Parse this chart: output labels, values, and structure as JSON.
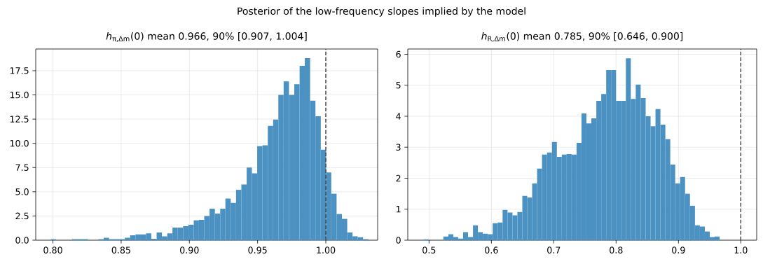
{
  "chart_data": [
    {
      "type": "histogram",
      "title": "*h*$_{π,Δm}$(0)   mean 0.966, 90% [0.907, 1.004]",
      "annotations": [
        "Posterior of the low-frequency slopes implied by the model"
      ],
      "bins": [
        0.7984,
        0.8023,
        0.8062,
        0.81,
        0.8139,
        0.8178,
        0.8217,
        0.8256,
        0.8294,
        0.8333,
        0.8372,
        0.8411,
        0.845,
        0.8488,
        0.8527,
        0.8566,
        0.8605,
        0.8644,
        0.8682,
        0.8721,
        0.876,
        0.8799,
        0.8838,
        0.8876,
        0.8915,
        0.8954,
        0.8993,
        0.9032,
        0.907,
        0.9109,
        0.9148,
        0.9187,
        0.9226,
        0.9264,
        0.9303,
        0.9342,
        0.9381,
        0.942,
        0.9458,
        0.9497,
        0.9536,
        0.9575,
        0.9614,
        0.9652,
        0.9691,
        0.973,
        0.9769,
        0.9808,
        0.9846,
        0.9885,
        0.9924,
        0.9963,
        1.0002,
        1.004,
        1.0079,
        1.0118,
        1.0157,
        1.0196,
        1.0234,
        1.0273,
        1.0312
      ],
      "values": [
        0.1,
        0,
        0,
        0,
        0.1,
        0.1,
        0.1,
        0,
        0,
        0.1,
        0.25,
        0.1,
        0.1,
        0.1,
        0.25,
        0.5,
        0.6,
        0.6,
        0.7,
        0.15,
        0.8,
        0.4,
        0.7,
        1.3,
        1.3,
        1.45,
        1.6,
        2.05,
        2.1,
        2.5,
        3.25,
        2.75,
        3.25,
        4.3,
        3.85,
        5.2,
        5.75,
        7.5,
        6.9,
        9.7,
        9.8,
        11.8,
        12.45,
        15.0,
        16.4,
        15.0,
        16.1,
        18.0,
        18.8,
        14.4,
        12.8,
        9.35,
        7.0,
        4.8,
        2.7,
        2.2,
        0.8,
        0.4,
        0.3,
        0.1
      ],
      "color": "#4b92c3",
      "xlim": [
        0.7874,
        1.038
      ],
      "ylim": [
        0,
        19.74
      ],
      "xticks": [
        {
          "value": 0.8,
          "label": "0.80"
        },
        {
          "value": 0.85,
          "label": "0.85"
        },
        {
          "value": 0.9,
          "label": "0.90"
        },
        {
          "value": 0.95,
          "label": "0.95"
        },
        {
          "value": 1.0,
          "label": "1.00"
        }
      ],
      "yticks": [
        {
          "value": 0,
          "label": "0.0"
        },
        {
          "value": 2.5,
          "label": "2.5"
        },
        {
          "value": 5,
          "label": "5.0"
        },
        {
          "value": 7.5,
          "label": "7.5"
        },
        {
          "value": 10,
          "label": "10.0"
        },
        {
          "value": 12.5,
          "label": "12.5"
        },
        {
          "value": 15,
          "label": "15.0"
        },
        {
          "value": 17.5,
          "label": "17.5"
        }
      ],
      "ref_lines": [
        {
          "axis": "x",
          "value": 1.0,
          "color": "#444444",
          "line_style": "dashed"
        }
      ],
      "grid": true
    },
    {
      "type": "histogram",
      "title": "*h*$_{R,Δm}$(0)   mean 0.785, 90% [0.646, 0.900]",
      "bins": [
        0.4914,
        0.4993,
        0.5072,
        0.5151,
        0.523,
        0.531,
        0.5389,
        0.5468,
        0.5547,
        0.5626,
        0.5705,
        0.5784,
        0.5863,
        0.5942,
        0.6021,
        0.6101,
        0.618,
        0.6259,
        0.6338,
        0.6417,
        0.6496,
        0.6575,
        0.6654,
        0.6733,
        0.6812,
        0.6892,
        0.6971,
        0.705,
        0.7129,
        0.7208,
        0.7287,
        0.7366,
        0.7445,
        0.7524,
        0.7603,
        0.7683,
        0.7762,
        0.7841,
        0.792,
        0.7999,
        0.8078,
        0.8157,
        0.8236,
        0.8315,
        0.8394,
        0.8474,
        0.8553,
        0.8632,
        0.8711,
        0.879,
        0.8869,
        0.8948,
        0.9027,
        0.9106,
        0.9185,
        0.9265,
        0.9344,
        0.9423,
        0.9502,
        0.9581,
        0.966
      ],
      "values": [
        0.03,
        0,
        0,
        0,
        0.12,
        0.19,
        0.1,
        0.05,
        0.26,
        0.1,
        0.48,
        0.26,
        0.21,
        0.19,
        0.55,
        0.57,
        0.98,
        0.89,
        0.8,
        0.91,
        1.43,
        1.38,
        1.83,
        2.31,
        2.76,
        2.83,
        3.17,
        2.69,
        2.76,
        2.78,
        2.76,
        3.14,
        4.09,
        3.77,
        3.93,
        4.5,
        4.72,
        5.49,
        5.49,
        4.5,
        4.5,
        5.87,
        4.56,
        5.02,
        4.59,
        4.0,
        3.68,
        4.23,
        3.73,
        3.26,
        2.44,
        1.83,
        2.04,
        1.5,
        1.11,
        0.48,
        0.44,
        0.28,
        0.1,
        0.12
      ],
      "color": "#4b92c3",
      "xlim": [
        0.4659,
        1.0255
      ],
      "ylim": [
        0,
        6.17
      ],
      "xticks": [
        {
          "value": 0.5,
          "label": "0.5"
        },
        {
          "value": 0.6,
          "label": "0.6"
        },
        {
          "value": 0.7,
          "label": "0.7"
        },
        {
          "value": 0.8,
          "label": "0.8"
        },
        {
          "value": 0.9,
          "label": "0.9"
        },
        {
          "value": 1.0,
          "label": "1.0"
        }
      ],
      "yticks": [
        0,
        1,
        2,
        3,
        4,
        5,
        6
      ],
      "ref_lines": [
        {
          "axis": "x",
          "value": 1.0,
          "color": "#444444",
          "line_style": "dashed"
        }
      ],
      "grid": true
    }
  ]
}
